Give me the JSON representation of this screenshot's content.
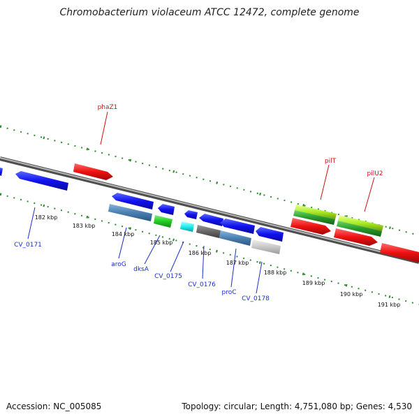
{
  "title": "Chromobacterium violaceum ATCC 12472, complete genome",
  "footer": {
    "accession": "Accession: NC_005085",
    "summary": "Topology: circular; Length: 4,751,080 bp; Genes: 4,530"
  },
  "colors": {
    "backbone": "#7a7a7a",
    "tick": "#2e8b2e",
    "forward_label": "#cc1111",
    "reverse_label": "#1a2fcc"
  },
  "scale_labels": [
    "182 kbp",
    "183 kbp",
    "184 kbp",
    "185 kbp",
    "186 kbp",
    "187 kbp",
    "188 kbp",
    "189 kbp",
    "190 kbp",
    "191 kbp"
  ],
  "gene_labels": {
    "forward": [
      "phaZ1",
      "pilT",
      "pilU2"
    ],
    "reverse": [
      "CV_0171",
      "aroG",
      "dksA",
      "CV_0175",
      "CV_0176",
      "proC",
      "CV_0178"
    ]
  }
}
